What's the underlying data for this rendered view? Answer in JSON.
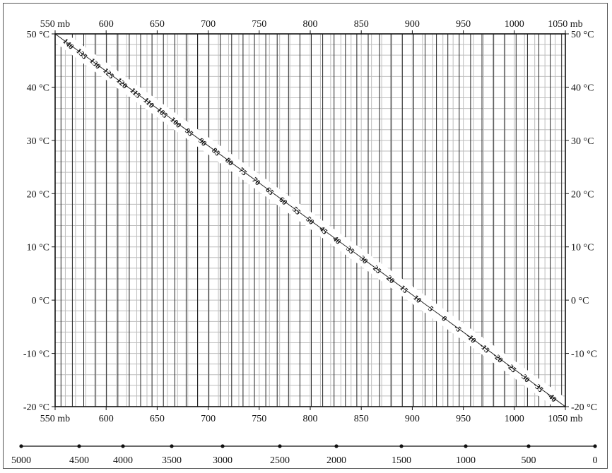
{
  "chart_data": {
    "type": "line",
    "top_pressure_labels": [
      "550 mb",
      "600",
      "650",
      "700",
      "750",
      "800",
      "850",
      "900",
      "950",
      "1000",
      "1050 mb"
    ],
    "bottom_pressure_labels": [
      "550 mb",
      "600",
      "650",
      "700",
      "750",
      "800",
      "850",
      "900",
      "950",
      "1000",
      "1050 mb"
    ],
    "pressure_values": [
      550,
      600,
      650,
      700,
      750,
      800,
      850,
      900,
      950,
      1000,
      1050
    ],
    "left_temperature_labels": [
      "50 °C",
      "40 °C",
      "30 °C",
      "20 °C",
      "10 °C",
      "0 °C",
      "-10 °C",
      "-20 °C"
    ],
    "right_temperature_labels": [
      "50 °C",
      "40 °C",
      "30 °C",
      "20 °C",
      "10 °C",
      "0 °C",
      "-10 °C",
      "-20 °C"
    ],
    "temperature_values": [
      50,
      40,
      30,
      20,
      10,
      0,
      -10,
      -20
    ],
    "xlim": [
      550,
      1050
    ],
    "ylim": [
      -20,
      50
    ],
    "grid": true,
    "diagonal_scale_labels": [
      "140",
      "135",
      "130",
      "125",
      "120",
      "115",
      "110",
      "105",
      "100",
      "95",
      "90",
      "85",
      "80",
      "75",
      "70",
      "65",
      "60",
      "55",
      "50",
      "45",
      "40",
      "35",
      "30",
      "25",
      "20",
      "15",
      "10",
      "5",
      "0",
      "-5",
      "-10",
      "-15",
      "-20",
      "-25",
      "-30",
      "-35",
      "-40"
    ],
    "diagonal_scale_values": [
      140,
      135,
      130,
      125,
      120,
      115,
      110,
      105,
      100,
      95,
      90,
      85,
      80,
      75,
      70,
      65,
      60,
      55,
      50,
      45,
      40,
      35,
      30,
      25,
      20,
      15,
      10,
      5,
      0,
      -5,
      -10,
      -15,
      -20,
      -25,
      -30,
      -35,
      -40
    ],
    "altitude_labels": [
      "5000",
      "4500",
      "4000",
      "3500",
      "3000",
      "2500",
      "2000",
      "1500",
      "1000",
      "500",
      "0"
    ],
    "altitude_values": [
      5000,
      4500,
      4000,
      3500,
      3000,
      2500,
      2000,
      1500,
      1000,
      500,
      0
    ],
    "altitude_pressure_equivalents": [
      540,
      573,
      616,
      662,
      713,
      769,
      826,
      890,
      953,
      1013,
      1078
    ]
  }
}
